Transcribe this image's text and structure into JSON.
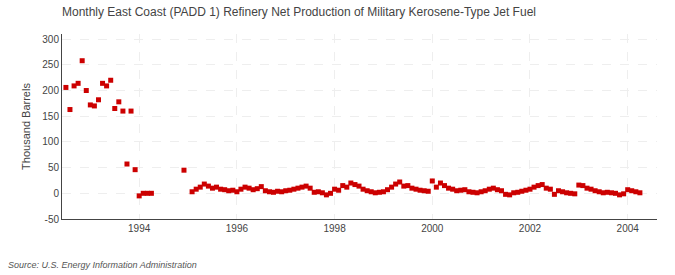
{
  "chart_data": {
    "type": "scatter",
    "title": "Monthly East Coast (PADD 1) Refinery Net Production of Military Kerosene-Type Jet Fuel",
    "ylabel": "Thousand Barrels",
    "source": "Source: U.S. Energy Information Administration",
    "color": "#cc0000",
    "marker": "square",
    "grid": true,
    "xlim": [
      1992.42,
      2004.6
    ],
    "xticks": [
      1994,
      1996,
      1998,
      2000,
      2002,
      2004
    ],
    "ylim": [
      -50,
      310
    ],
    "yticks": [
      -50,
      0,
      50,
      100,
      150,
      200,
      250,
      300
    ],
    "x": [
      1992.5,
      1992.583,
      1992.667,
      1992.75,
      1992.833,
      1992.917,
      1993.0,
      1993.083,
      1993.167,
      1993.25,
      1993.333,
      1993.417,
      1993.5,
      1993.583,
      1993.667,
      1993.75,
      1993.833,
      1993.917,
      1994.0,
      1994.083,
      1994.167,
      1994.25,
      1994.917,
      1995.083,
      1995.167,
      1995.25,
      1995.333,
      1995.417,
      1995.5,
      1995.583,
      1995.667,
      1995.75,
      1995.833,
      1995.917,
      1996.0,
      1996.083,
      1996.167,
      1996.25,
      1996.333,
      1996.417,
      1996.5,
      1996.583,
      1996.667,
      1996.75,
      1996.833,
      1996.917,
      1997.0,
      1997.083,
      1997.167,
      1997.25,
      1997.333,
      1997.417,
      1997.5,
      1997.583,
      1997.667,
      1997.75,
      1997.833,
      1997.917,
      1998.0,
      1998.083,
      1998.167,
      1998.25,
      1998.333,
      1998.417,
      1998.5,
      1998.583,
      1998.667,
      1998.75,
      1998.833,
      1998.917,
      1999.0,
      1999.083,
      1999.167,
      1999.25,
      1999.333,
      1999.417,
      1999.5,
      1999.583,
      1999.667,
      1999.75,
      1999.833,
      1999.917,
      2000.0,
      2000.083,
      2000.167,
      2000.25,
      2000.333,
      2000.417,
      2000.5,
      2000.583,
      2000.667,
      2000.75,
      2000.833,
      2000.917,
      2001.0,
      2001.083,
      2001.167,
      2001.25,
      2001.333,
      2001.417,
      2001.5,
      2001.583,
      2001.667,
      2001.75,
      2001.833,
      2001.917,
      2002.0,
      2002.083,
      2002.167,
      2002.25,
      2002.333,
      2002.417,
      2002.5,
      2002.583,
      2002.667,
      2002.75,
      2002.833,
      2002.917,
      2003.0,
      2003.083,
      2003.167,
      2003.25,
      2003.333,
      2003.417,
      2003.5,
      2003.583,
      2003.667,
      2003.75,
      2003.833,
      2003.917,
      2004.0,
      2004.083,
      2004.167,
      2004.25
    ],
    "values": [
      206,
      163,
      209,
      214,
      258,
      200,
      172,
      170,
      182,
      214,
      209,
      220,
      165,
      178,
      160,
      57,
      160,
      46,
      -5,
      0,
      0,
      0,
      45,
      3,
      8,
      12,
      18,
      14,
      10,
      12,
      8,
      7,
      5,
      6,
      3,
      8,
      12,
      10,
      7,
      9,
      13,
      5,
      3,
      2,
      4,
      3,
      5,
      6,
      8,
      10,
      12,
      14,
      10,
      2,
      3,
      1,
      -3,
      0,
      8,
      6,
      15,
      12,
      20,
      17,
      14,
      8,
      5,
      3,
      1,
      2,
      3,
      7,
      12,
      18,
      22,
      14,
      15,
      10,
      8,
      6,
      5,
      4,
      24,
      12,
      20,
      15,
      10,
      8,
      5,
      6,
      7,
      3,
      2,
      1,
      3,
      5,
      8,
      10,
      7,
      5,
      -2,
      -3,
      1,
      2,
      4,
      6,
      8,
      12,
      15,
      17,
      10,
      8,
      -2,
      5,
      3,
      1,
      0,
      -1,
      16,
      15,
      10,
      8,
      5,
      3,
      1,
      2,
      1,
      0,
      -3,
      -1,
      7,
      5,
      3,
      1
    ]
  }
}
